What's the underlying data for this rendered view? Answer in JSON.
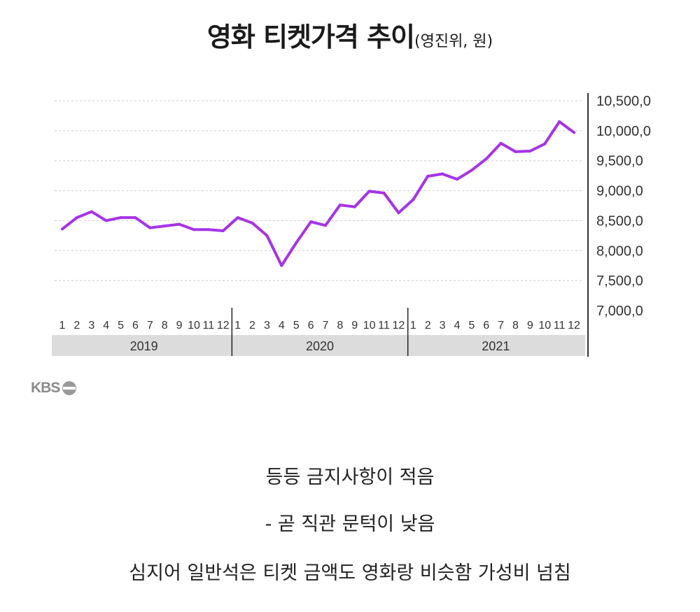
{
  "title": {
    "main": "영화 티켓가격 추이",
    "sub": "(영진위, 원)"
  },
  "logo_text": "KBS",
  "captions": [
    "등등  금지사항이 적음",
    "- 곧 직관 문턱이 낮음",
    "심지어 일반석은 티켓 금액도 영화랑 비슷함 가성비 넘침"
  ],
  "colors": {
    "line": "#a633e8",
    "grid": "#d6d6d6",
    "year_band": "#dcdcdc",
    "axis": "#333333"
  },
  "chart_data": {
    "type": "line",
    "title": "영화 티켓가격 추이",
    "ylim": [
      7000,
      10500
    ],
    "y_ticks": [
      7000,
      7500,
      8000,
      8500,
      9000,
      9500,
      10000,
      10500
    ],
    "y_tick_labels": [
      "7,000,0",
      "7,500,0",
      "8,000,0",
      "8,500,0",
      "9,000,0",
      "9,500,0",
      "10,000,0",
      "10,500,0"
    ],
    "grid": true,
    "month_labels": [
      "1",
      "2",
      "3",
      "4",
      "5",
      "6",
      "7",
      "8",
      "9",
      "10",
      "11",
      "12"
    ],
    "years": [
      "2019",
      "2020",
      "2021"
    ],
    "series": [
      {
        "values": [
          8360,
          8550,
          8650,
          8500,
          8550,
          8550,
          8380,
          8410,
          8440,
          8350,
          8350,
          8330,
          8550,
          8460,
          8250,
          7750,
          8130,
          8480,
          8420,
          8760,
          8730,
          8990,
          8960,
          8630,
          8850,
          9240,
          9280,
          9190,
          9340,
          9530,
          9790,
          9650,
          9660,
          9780,
          10150,
          9970
        ]
      }
    ]
  }
}
